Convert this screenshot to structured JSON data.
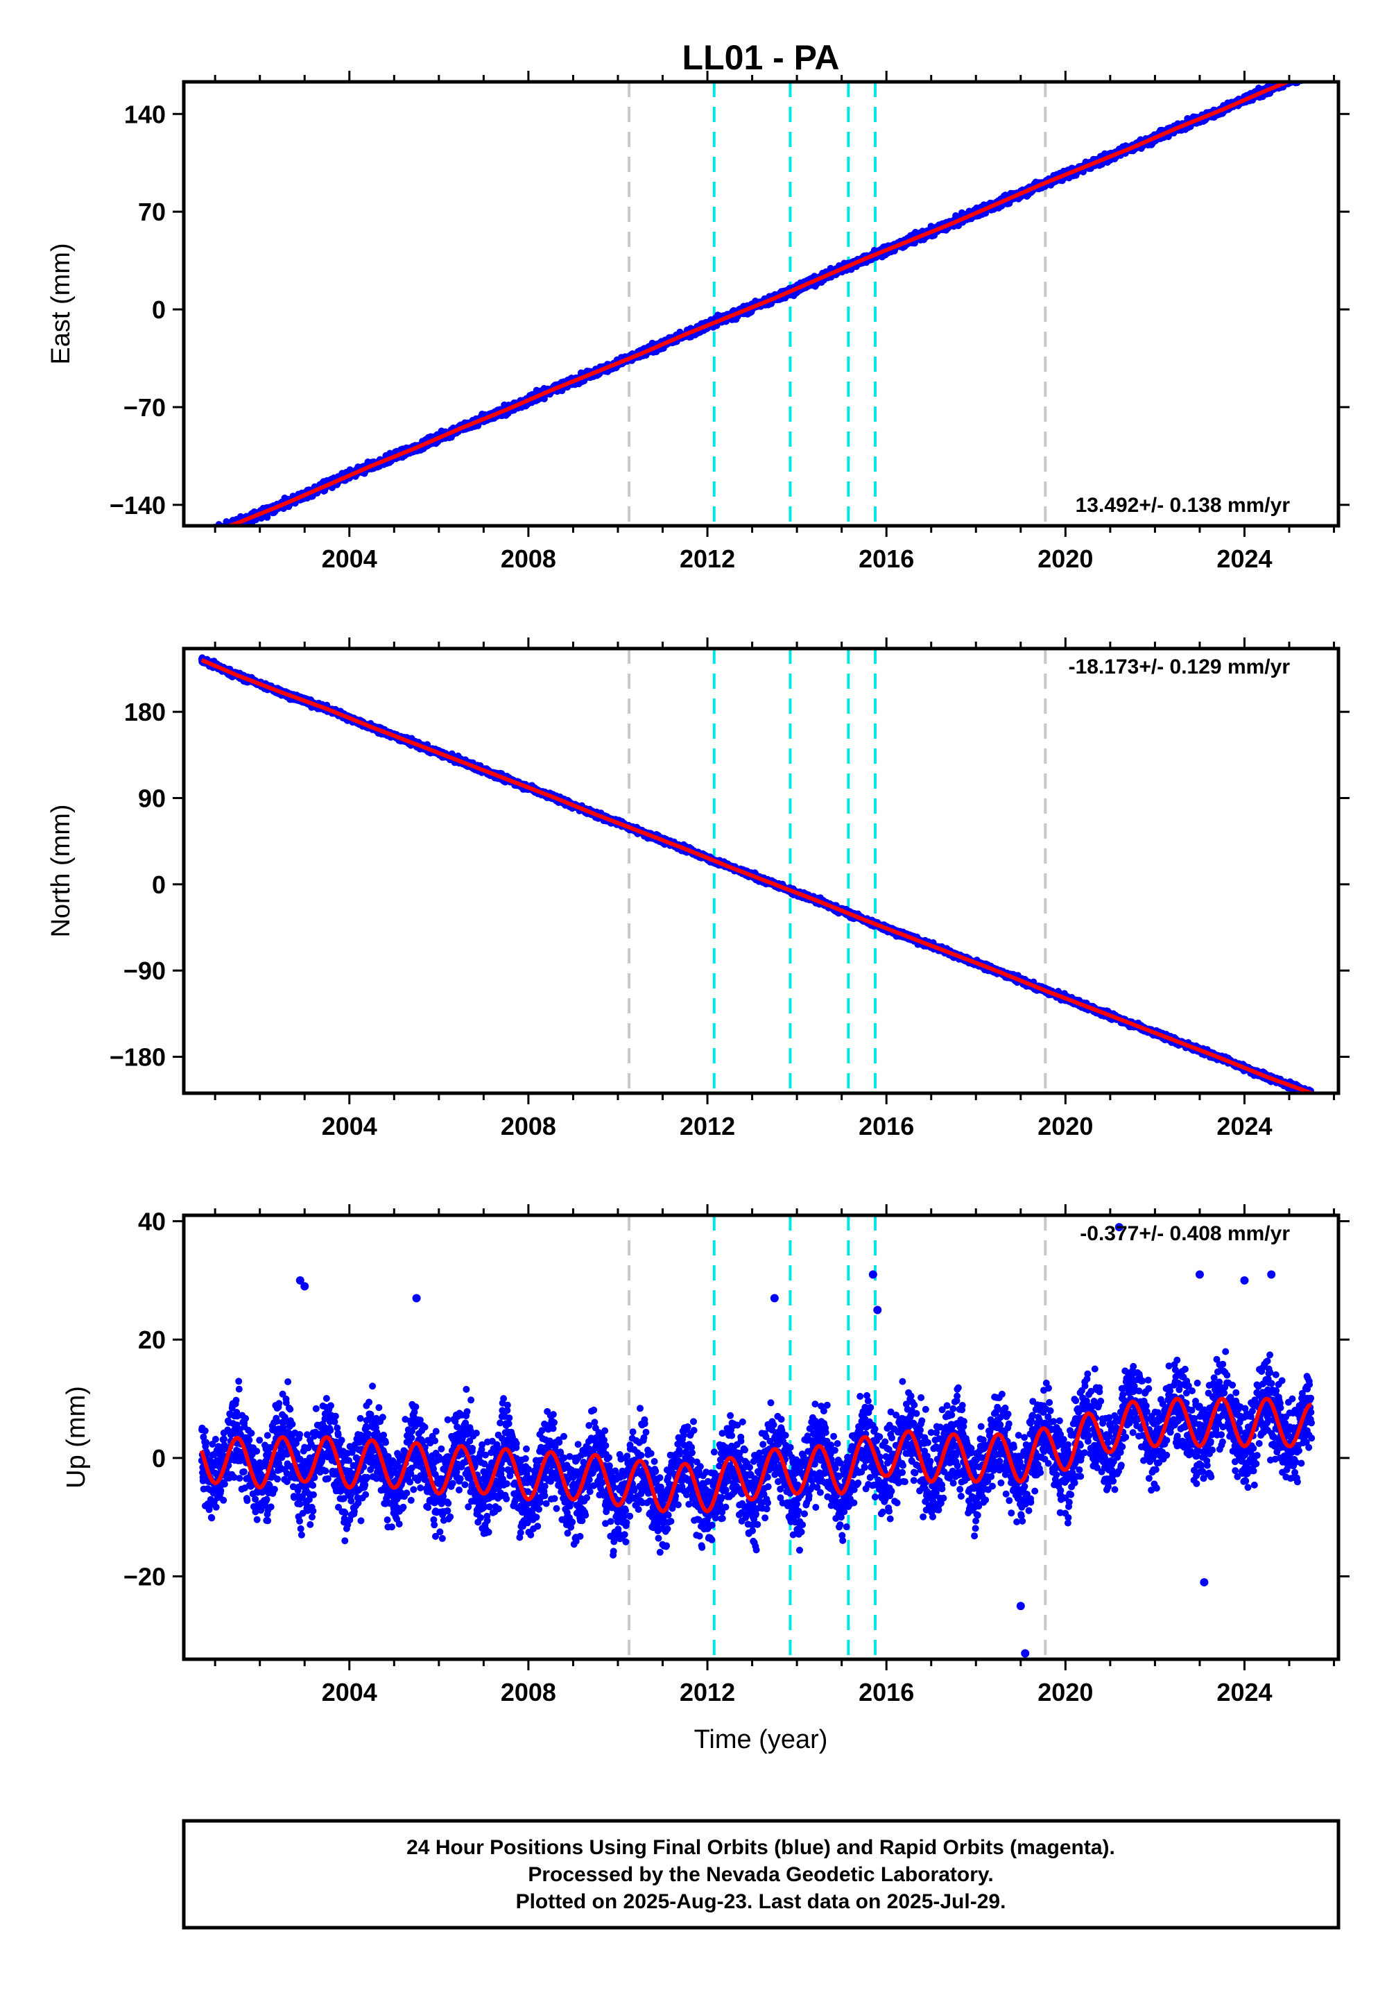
{
  "title": "LL01 - PA",
  "xlabel": "Time (year)",
  "footer": {
    "lines": [
      "24 Hour Positions Using Final Orbits (blue) and Rapid Orbits (magenta).",
      "Processed by the Nevada Geodetic Laboratory.",
      "Plotted on 2025-Aug-23. Last data on 2025-Jul-29."
    ]
  },
  "colors": {
    "final_orbits": "#0000ff",
    "rapid_orbits": "#ff00ff",
    "model_fit": "#ff0000",
    "equipment_change": "#c8c8c8",
    "earthquake": "#00e6e6",
    "frame": "#000000"
  },
  "chart_data": [
    {
      "type": "scatter",
      "panel": "east",
      "ylabel": "East (mm)",
      "xlim": [
        2000.3,
        2026.1
      ],
      "ylim": [
        -155,
        163
      ],
      "xticks": [
        2004,
        2008,
        2012,
        2016,
        2020,
        2024
      ],
      "yticks": [
        -140,
        -70,
        0,
        70,
        140
      ],
      "rate_text": "13.492+/- 0.138 mm/yr",
      "rate_position": "bottom-right",
      "velocity_mm_per_yr": 13.492,
      "series": [
        {
          "name": "final",
          "x": [
            2000.7,
            2001.5,
            2002.5,
            2003.5,
            2004.5,
            2005.5,
            2006.5,
            2007.5,
            2008.5,
            2009.5,
            2010.5,
            2011.5,
            2012.5,
            2013.5,
            2014.5,
            2015.5,
            2016.5,
            2017.5,
            2018.5,
            2019.5,
            2020.5,
            2021.5,
            2022.5,
            2023.5,
            2024.5,
            2025.5
          ],
          "y": [
            -162,
            -153,
            -140,
            -126,
            -112,
            -99,
            -85,
            -72,
            -58,
            -45,
            -32,
            -18,
            -5,
            8,
            22,
            36,
            49,
            62,
            76,
            90,
            103,
            116,
            130,
            143,
            157,
            170
          ]
        }
      ],
      "vlines_gray": [
        2010.25,
        2019.55
      ],
      "vlines_cyan": [
        2012.15,
        2013.85,
        2015.15,
        2015.75
      ]
    },
    {
      "type": "scatter",
      "panel": "north",
      "ylabel": "North (mm)",
      "xlim": [
        2000.3,
        2026.1
      ],
      "ylim": [
        -218,
        246
      ],
      "xticks": [
        2004,
        2008,
        2012,
        2016,
        2020,
        2024
      ],
      "yticks": [
        -180,
        -90,
        0,
        90,
        180
      ],
      "rate_text": "-18.173+/- 0.129 mm/yr",
      "rate_position": "top-right",
      "velocity_mm_per_yr": -18.173,
      "series": [
        {
          "name": "final",
          "x": [
            2000.7,
            2001.5,
            2002.5,
            2003.5,
            2004.5,
            2005.5,
            2006.5,
            2007.5,
            2008.5,
            2009.5,
            2010.5,
            2011.5,
            2012.5,
            2013.5,
            2014.5,
            2015.5,
            2016.5,
            2017.5,
            2018.5,
            2019.5,
            2020.5,
            2021.5,
            2022.5,
            2023.5,
            2024.5,
            2025.5
          ],
          "y": [
            234,
            218,
            200,
            183,
            164,
            146,
            128,
            110,
            92,
            73,
            55,
            37,
            18,
            0,
            -18,
            -37,
            -55,
            -73,
            -91,
            -110,
            -128,
            -146,
            -164,
            -182,
            -201,
            -218
          ]
        }
      ],
      "vlines_gray": [
        2010.25,
        2019.55
      ],
      "vlines_cyan": [
        2012.15,
        2013.85,
        2015.15,
        2015.75
      ]
    },
    {
      "type": "scatter",
      "panel": "up",
      "ylabel": "Up (mm)",
      "xlim": [
        2000.3,
        2026.1
      ],
      "ylim": [
        -34,
        41
      ],
      "xticks": [
        2004,
        2008,
        2012,
        2016,
        2020,
        2024
      ],
      "yticks": [
        -20,
        0,
        20,
        40
      ],
      "rate_text": "-0.377+/- 0.408 mm/yr",
      "rate_position": "top-right",
      "velocity_mm_per_yr": -0.377,
      "annual_amplitude_mm": 4,
      "series": [
        {
          "name": "final",
          "x": [
            2000.7,
            2002.0,
            2003.0,
            2004.0,
            2005.0,
            2006.0,
            2007.0,
            2008.0,
            2009.0,
            2010.0,
            2011.0,
            2012.0,
            2013.0,
            2014.0,
            2015.0,
            2016.0,
            2017.0,
            2018.0,
            2019.0,
            2020.0,
            2021.0,
            2022.0,
            2023.0,
            2024.0,
            2025.0,
            2025.5
          ],
          "y": [
            0,
            -1,
            0,
            -1,
            -1,
            -2,
            -2,
            -3,
            -3,
            -4,
            -5,
            -5,
            -3,
            -2,
            -2,
            1,
            0,
            0,
            0,
            2,
            5,
            6,
            6,
            6,
            6,
            5
          ]
        }
      ],
      "outliers": [
        [
          2002.9,
          30
        ],
        [
          2003.0,
          29
        ],
        [
          2005.5,
          27
        ],
        [
          2013.5,
          27
        ],
        [
          2015.7,
          31
        ],
        [
          2015.8,
          25
        ],
        [
          2019.0,
          -25
        ],
        [
          2019.1,
          -33
        ],
        [
          2021.2,
          39
        ],
        [
          2023.0,
          31
        ],
        [
          2023.1,
          -21
        ],
        [
          2024.0,
          30
        ],
        [
          2024.6,
          31
        ]
      ],
      "vlines_gray": [
        2010.25,
        2019.55
      ],
      "vlines_cyan": [
        2012.15,
        2013.85,
        2015.15,
        2015.75
      ]
    }
  ]
}
